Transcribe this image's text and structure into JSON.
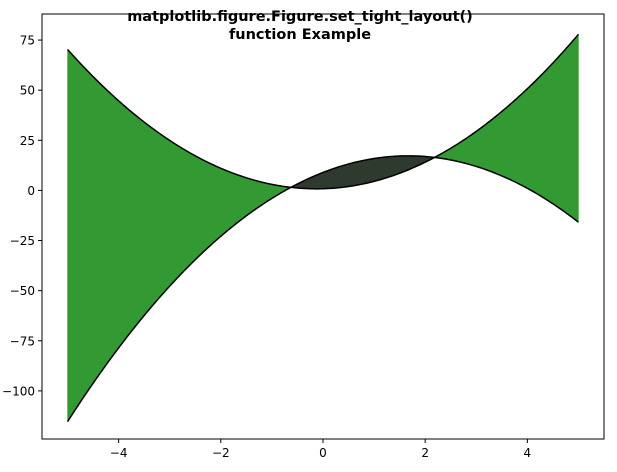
{
  "chart_data": {
    "type": "area",
    "title_lines": [
      "matplotlib.figure.Figure.set_tight_layout()",
      "function Example"
    ],
    "xlabel": "",
    "ylabel": "",
    "xlim": [
      -5.5,
      5.5
    ],
    "ylim": [
      -124,
      88
    ],
    "x_ticks": [
      -4,
      -2,
      0,
      2,
      4
    ],
    "x_tick_labels": [
      "−4",
      "−2",
      "0",
      "2",
      "4"
    ],
    "y_ticks": [
      75,
      50,
      25,
      0,
      -25,
      -50,
      -75,
      -100
    ],
    "y_tick_labels": [
      "75",
      "50",
      "25",
      "0",
      "−25",
      "−50",
      "−75",
      "−100"
    ],
    "grid": false,
    "x_range": [
      -5,
      5
    ],
    "series": [
      {
        "x": [
          -5,
          -4,
          -3,
          -2,
          -1,
          -0.75,
          0,
          1,
          2,
          2.25,
          3,
          4,
          5
        ],
        "values": [
          70,
          45.3,
          25.6,
          10.9,
          1.2,
          0.5,
          0,
          8.6,
          17.9,
          17.7,
          24.5,
          48.6,
          80
        ]
      },
      {
        "x": [
          -5,
          -4,
          -3,
          -2,
          -1,
          -0.75,
          0,
          1,
          2,
          2.25,
          3,
          4,
          5
        ],
        "values": [
          -115,
          -79,
          -48,
          -23,
          -3.5,
          0.5,
          8,
          16,
          17.6,
          17.7,
          10,
          0.2,
          -15
        ]
      }
    ],
    "fill_colors": {
      "upper_above": "#339933",
      "lower_above": "#2e3a2e"
    },
    "line_color": "#000000"
  }
}
